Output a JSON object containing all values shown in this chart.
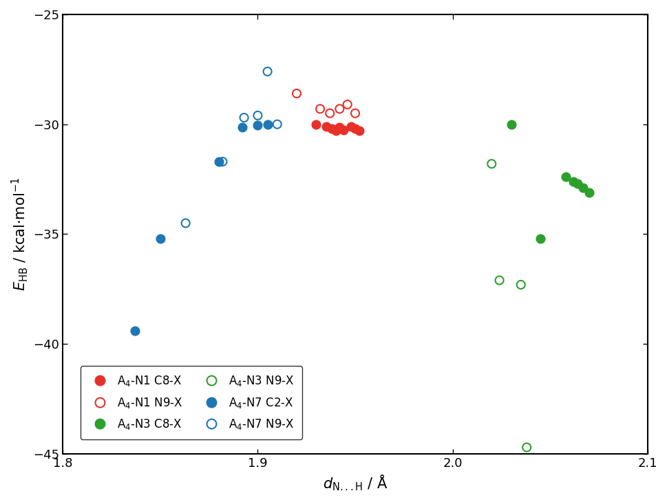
{
  "xlabel": "$d_{\\mathrm{N...H}}$ / Å",
  "ylabel": "$E_{\\mathrm{HB}}$ / kcal·mol$^{-1}$",
  "xlim": [
    1.8,
    2.1
  ],
  "ylim": [
    -45,
    -25
  ],
  "xticks": [
    1.8,
    1.9,
    2.0,
    2.1
  ],
  "yticks": [
    -45,
    -40,
    -35,
    -30,
    -25
  ],
  "series": [
    {
      "label": "A$_4$-N1 C8-X",
      "color": "#e8302a",
      "filled": true,
      "x": [
        1.93,
        1.935,
        1.938,
        1.94,
        1.942,
        1.944,
        1.948,
        1.95,
        1.952
      ],
      "y": [
        -30.0,
        -30.1,
        -30.2,
        -30.3,
        -30.15,
        -30.25,
        -30.1,
        -30.2,
        -30.3
      ]
    },
    {
      "label": "A$_4$-N1 N9-X",
      "color": "#e8302a",
      "filled": false,
      "x": [
        1.92,
        1.932,
        1.937,
        1.942,
        1.946,
        1.95
      ],
      "y": [
        -28.6,
        -29.3,
        -29.5,
        -29.3,
        -29.1,
        -29.5
      ]
    },
    {
      "label": "A$_4$-N3 C8-X",
      "color": "#2ca02c",
      "filled": true,
      "x": [
        2.03,
        2.045,
        2.058,
        2.062,
        2.064,
        2.067,
        2.07
      ],
      "y": [
        -30.0,
        -35.2,
        -32.4,
        -32.6,
        -32.7,
        -32.9,
        -33.1
      ]
    },
    {
      "label": "A$_4$-N3 N9-X",
      "color": "#2ca02c",
      "filled": false,
      "x": [
        2.02,
        2.024,
        2.035,
        2.038
      ],
      "y": [
        -31.8,
        -37.1,
        -37.3,
        -44.7
      ]
    },
    {
      "label": "A$_4$-N7 C2-X",
      "color": "#1f77b4",
      "filled": true,
      "x": [
        1.837,
        1.85,
        1.88,
        1.892,
        1.9,
        1.905
      ],
      "y": [
        -39.4,
        -35.2,
        -31.7,
        -30.15,
        -30.05,
        -30.0
      ]
    },
    {
      "label": "A$_4$-N7 N9-X",
      "color": "#1f77b4",
      "filled": false,
      "x": [
        1.863,
        1.882,
        1.893,
        1.9,
        1.905,
        1.91
      ],
      "y": [
        -34.5,
        -31.7,
        -29.7,
        -29.6,
        -27.6,
        -30.0
      ]
    }
  ],
  "legend_loc": "lower left",
  "marker_size": 75,
  "linewidth": 1.5,
  "tick_fontsize": 13,
  "label_fontsize": 15,
  "legend_fontsize": 12
}
